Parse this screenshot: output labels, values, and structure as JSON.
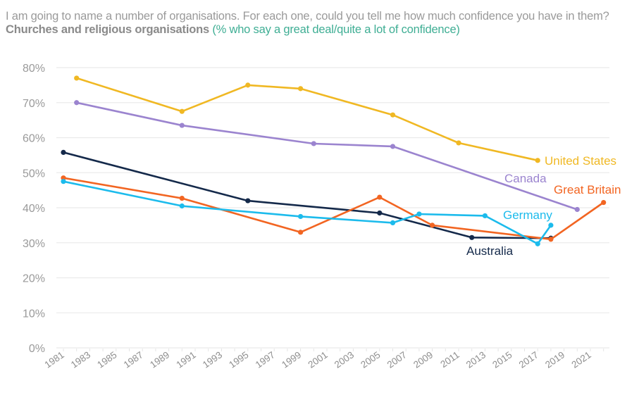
{
  "title": {
    "intro": "I am going to name a number of organisations. For each one, could you tell me how much confidence you have in them? ",
    "subject": "Churches and religious organisations",
    "measure": " (% who say a great deal/quite a lot of confidence)"
  },
  "chart_data": {
    "type": "line",
    "title": "I am going to name a number of organisations. For each one, could you tell me how much confidence you have in them? Churches and religious organisations (% who say a great deal/quite a lot of confidence)",
    "xlabel": "",
    "ylabel": "",
    "xlim": [
      1981,
      2022
    ],
    "ylim": [
      0,
      80
    ],
    "grid": true,
    "y_ticks": [
      "0%",
      "10%",
      "20%",
      "30%",
      "40%",
      "50%",
      "60%",
      "70%",
      "80%"
    ],
    "y_tick_values": [
      0,
      10,
      20,
      30,
      40,
      50,
      60,
      70,
      80
    ],
    "x_ticks": [
      "1981",
      "1983",
      "1985",
      "1987",
      "1989",
      "1991",
      "1993",
      "1995",
      "1997",
      "1999",
      "2001",
      "2003",
      "2005",
      "2007",
      "2009",
      "2011",
      "2013",
      "2015",
      "2017",
      "2019",
      "2021"
    ],
    "legend": "direct-labels",
    "series": [
      {
        "name": "United States",
        "color": "#f0b823",
        "points": [
          [
            1982,
            77
          ],
          [
            1990,
            67.5
          ],
          [
            1995,
            75
          ],
          [
            1999,
            74
          ],
          [
            2006,
            66.5
          ],
          [
            2011,
            58.5
          ],
          [
            2017,
            53.5
          ]
        ]
      },
      {
        "name": "Canada",
        "color": "#9b84cf",
        "points": [
          [
            1982,
            70
          ],
          [
            1990,
            63.5
          ],
          [
            2000,
            58.3
          ],
          [
            2006,
            57.5
          ],
          [
            2020,
            39.5
          ]
        ]
      },
      {
        "name": "Australia",
        "color": "#14294a",
        "points": [
          [
            1981,
            55.8
          ],
          [
            1995,
            42
          ],
          [
            2005,
            38.5
          ],
          [
            2012,
            31.5
          ],
          [
            2018,
            31.3
          ]
        ]
      },
      {
        "name": "Great Britain",
        "color": "#f26522",
        "points": [
          [
            1981,
            48.5
          ],
          [
            1990,
            42.7
          ],
          [
            1999,
            33
          ],
          [
            2005,
            43
          ],
          [
            2009,
            35
          ],
          [
            2018,
            31
          ],
          [
            2022,
            41.5
          ]
        ]
      },
      {
        "name": "Germany",
        "color": "#1cbbec",
        "points": [
          [
            1981,
            47.5
          ],
          [
            1990,
            40.5
          ],
          [
            1999,
            37.5
          ],
          [
            2006,
            35.7
          ],
          [
            2008,
            38.2
          ],
          [
            2013,
            37.7
          ],
          [
            2017,
            29.7
          ],
          [
            2018,
            35
          ]
        ]
      }
    ]
  }
}
